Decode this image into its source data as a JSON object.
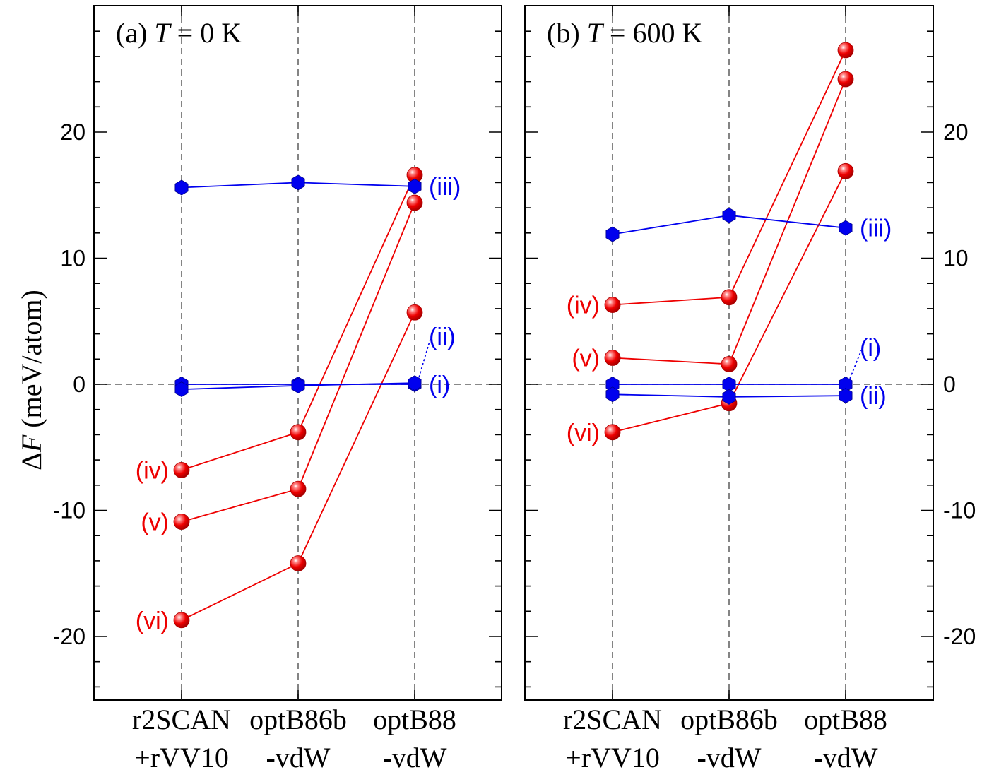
{
  "chart_data": {
    "type": "line",
    "ylabel": "ΔF (meV/atom)",
    "ylabel_symbol": "Δ",
    "ylabel_var": "F",
    "ylabel_unit": " (meV/atom)",
    "ylim": [
      -25,
      29
    ],
    "yticks": [
      -20,
      -10,
      0,
      10,
      20
    ],
    "ytick_labels": [
      "-20",
      "-10",
      "0",
      "10",
      "20"
    ],
    "categories": [
      {
        "line1": "r2SCAN",
        "line2": "+rVV10"
      },
      {
        "line1": "optB86b",
        "line2": "-vdW"
      },
      {
        "line1": "optB88",
        "line2": "-vdW"
      }
    ],
    "colors": {
      "red": "#ee0000",
      "blue": "#0000ee"
    },
    "panels": [
      {
        "title_prefix": "(a) ",
        "title_var": "T",
        "title_suffix": " = 0 K",
        "series": [
          {
            "name": "(iii)",
            "color": "blue",
            "marker": "hexagon",
            "values": [
              15.6,
              16.0,
              15.7
            ]
          },
          {
            "name": "(i)",
            "color": "blue",
            "marker": "hexagon",
            "values": [
              0.0,
              0.0,
              0.0
            ]
          },
          {
            "name": "(ii)",
            "color": "blue",
            "marker": "hexagon",
            "values": [
              -0.4,
              -0.1,
              0.1
            ]
          },
          {
            "name": "(iv)",
            "color": "red",
            "marker": "sphere",
            "values": [
              -6.8,
              -3.8,
              16.6
            ]
          },
          {
            "name": "(v)",
            "color": "red",
            "marker": "sphere",
            "values": [
              -10.9,
              -8.3,
              14.4
            ]
          },
          {
            "name": "(vi)",
            "color": "red",
            "marker": "sphere",
            "values": [
              -18.7,
              -14.2,
              5.7
            ]
          }
        ],
        "labels": [
          {
            "text": "(iv)",
            "color": "red",
            "value": -6.8,
            "pos": "left"
          },
          {
            "text": "(v)",
            "color": "red",
            "value": -10.9,
            "pos": "left"
          },
          {
            "text": "(vi)",
            "color": "red",
            "value": -18.7,
            "pos": "left"
          },
          {
            "text": "(iii)",
            "color": "blue",
            "value": 15.7,
            "pos": "right"
          },
          {
            "text": "(i)",
            "color": "blue",
            "value": 0.0,
            "pos": "right"
          },
          {
            "text": "(ii)",
            "color": "blue",
            "value": 3.8,
            "pos": "right-callout",
            "target": 0.1
          }
        ]
      },
      {
        "title_prefix": "(b) ",
        "title_var": "T",
        "title_suffix": " = 600 K",
        "series": [
          {
            "name": "(iii)",
            "color": "blue",
            "marker": "hexagon",
            "values": [
              11.9,
              13.4,
              12.4
            ]
          },
          {
            "name": "(i)",
            "color": "blue",
            "marker": "hexagon",
            "values": [
              0.0,
              0.0,
              0.0
            ]
          },
          {
            "name": "(ii)",
            "color": "blue",
            "marker": "hexagon",
            "values": [
              -0.8,
              -1.0,
              -0.9
            ]
          },
          {
            "name": "(iv)",
            "color": "red",
            "marker": "sphere",
            "values": [
              6.3,
              6.9,
              26.5
            ]
          },
          {
            "name": "(v)",
            "color": "red",
            "marker": "sphere",
            "values": [
              2.1,
              1.6,
              24.2
            ]
          },
          {
            "name": "(vi)",
            "color": "red",
            "marker": "sphere",
            "values": [
              -3.8,
              -1.5,
              16.9
            ]
          }
        ],
        "labels": [
          {
            "text": "(iv)",
            "color": "red",
            "value": 6.3,
            "pos": "left"
          },
          {
            "text": "(v)",
            "color": "red",
            "value": 2.1,
            "pos": "left"
          },
          {
            "text": "(vi)",
            "color": "red",
            "value": -3.8,
            "pos": "left"
          },
          {
            "text": "(iii)",
            "color": "blue",
            "value": 12.4,
            "pos": "right"
          },
          {
            "text": "(i)",
            "color": "blue",
            "value": 2.9,
            "pos": "right-callout",
            "target": 0.0
          },
          {
            "text": "(ii)",
            "color": "blue",
            "value": -0.9,
            "pos": "right"
          }
        ]
      }
    ]
  }
}
